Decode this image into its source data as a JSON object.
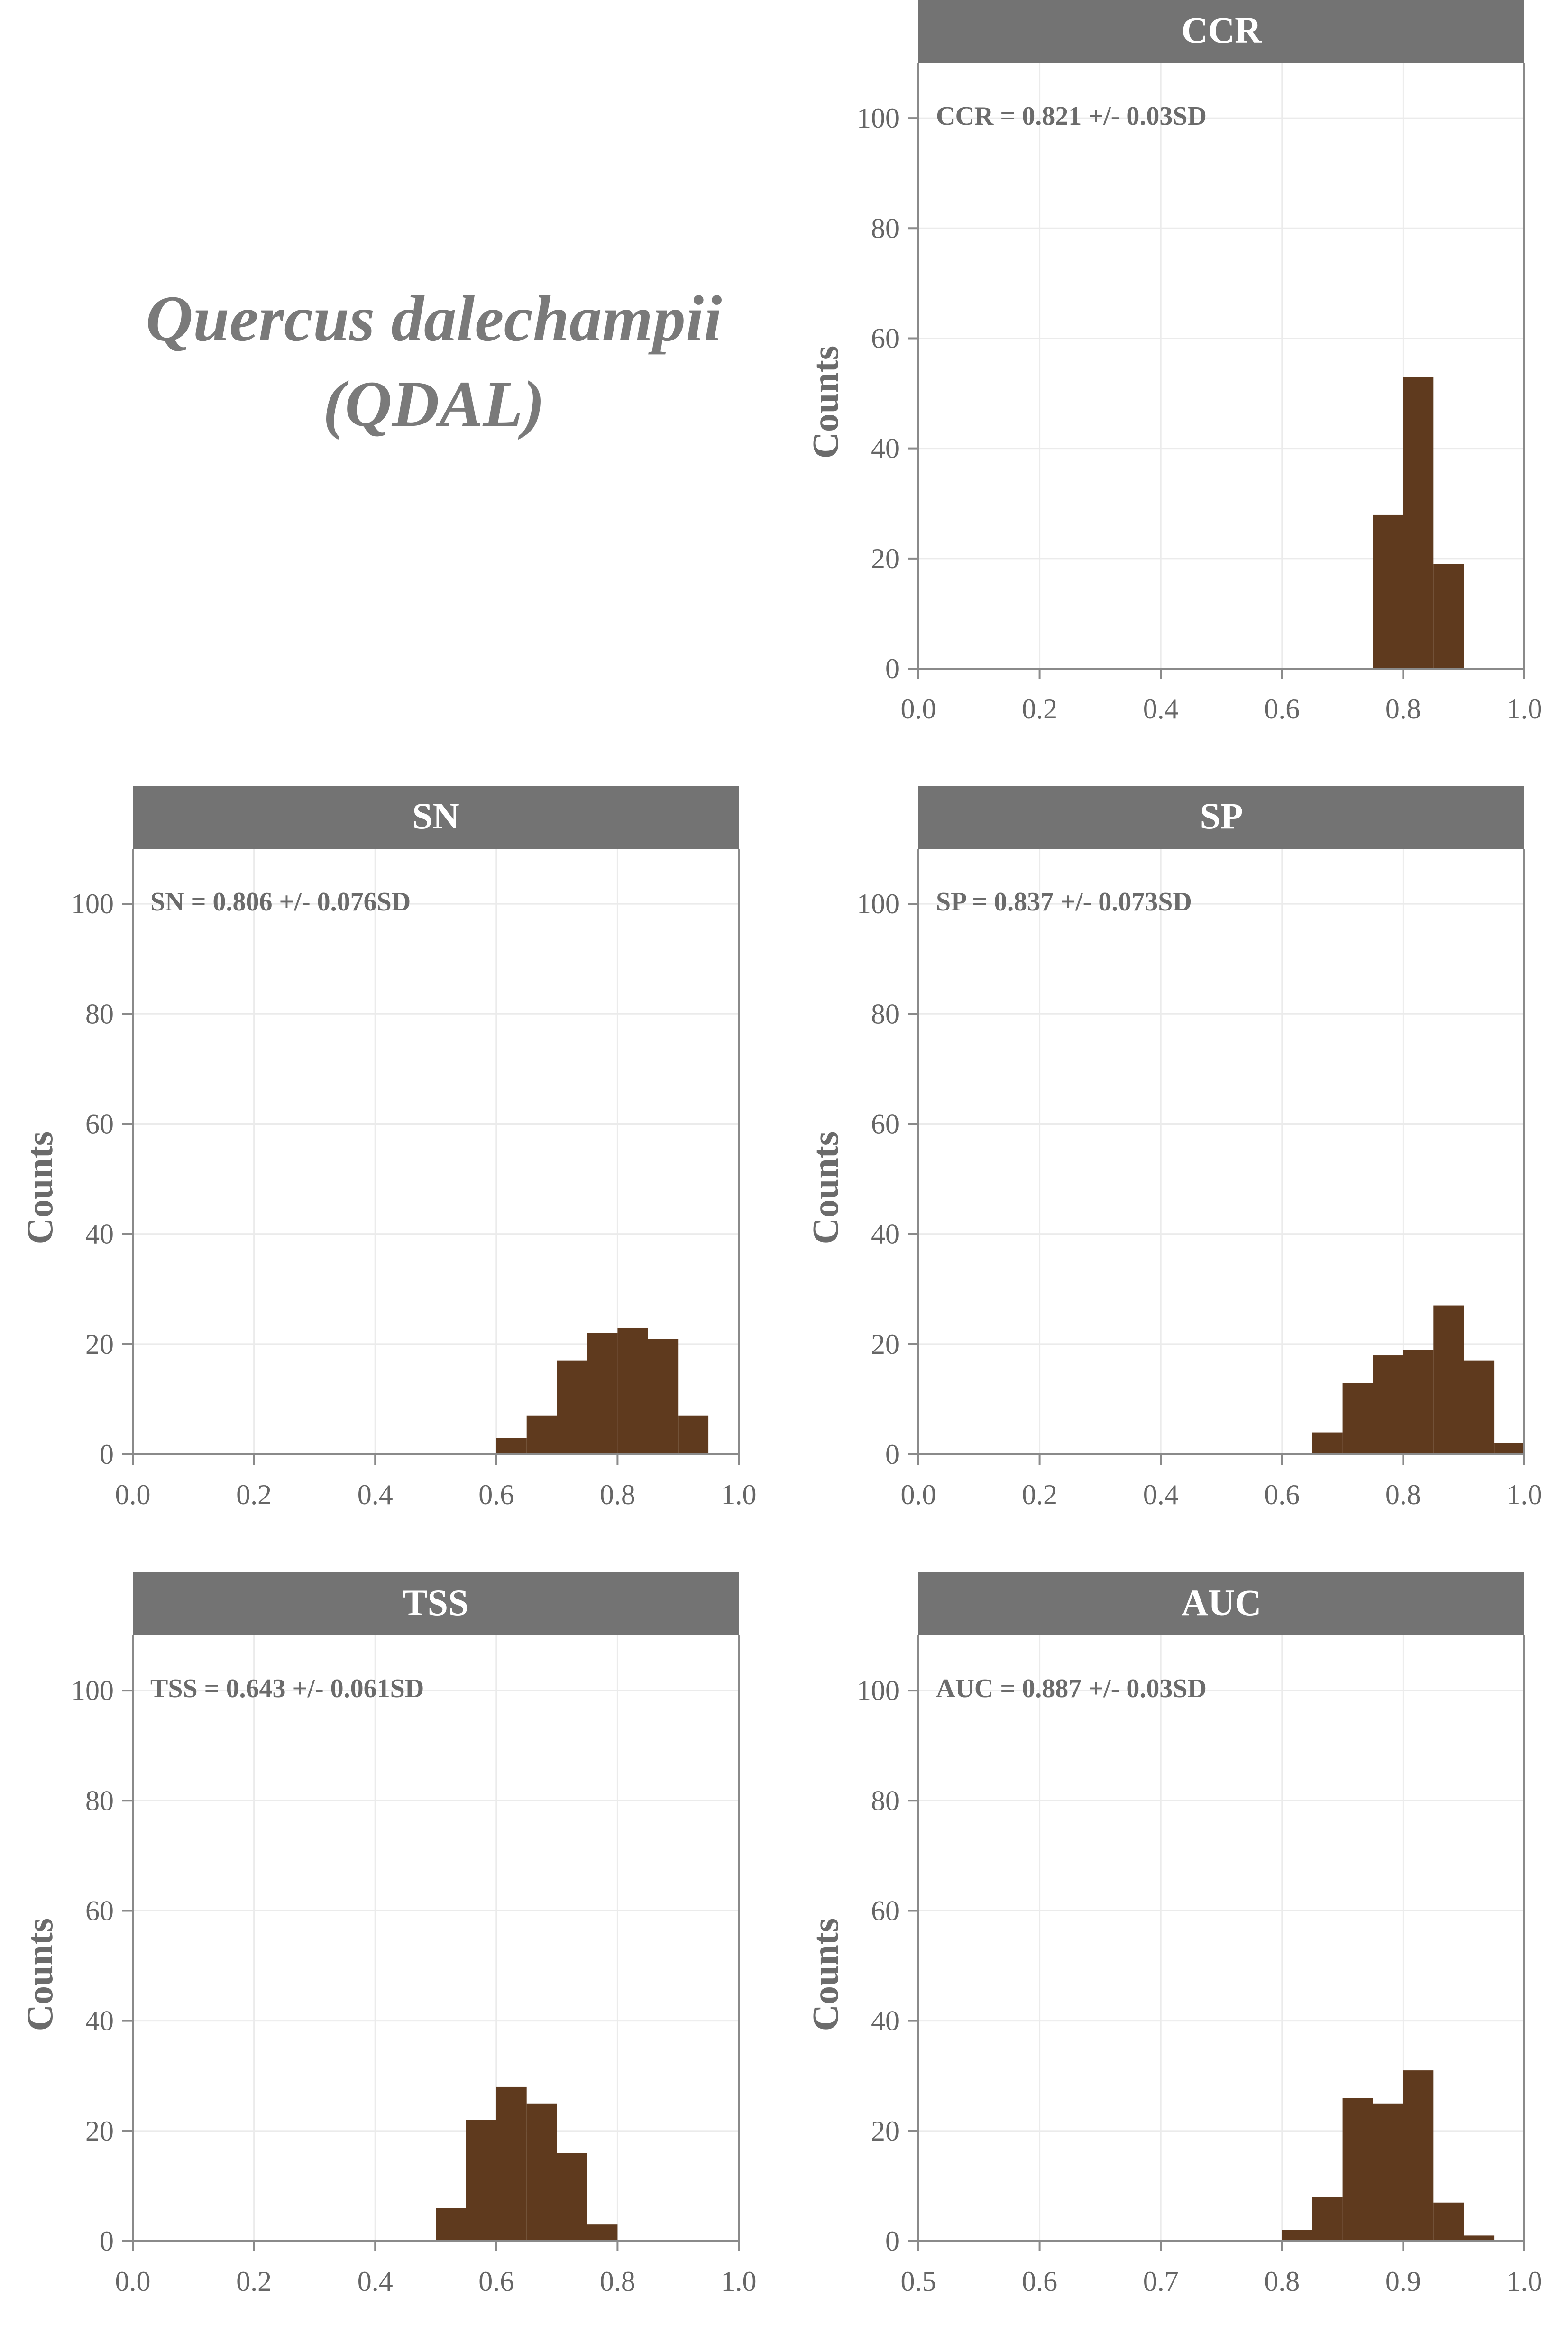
{
  "figure_title": {
    "line1": "Quercus dalechampii",
    "line2": "(QDAL)"
  },
  "colors": {
    "bar": "#5f3a1e",
    "strip": "#737373",
    "grid": "#ebebeb",
    "axis": "#8a8a8a",
    "text": "#666666"
  },
  "chart_data": [
    {
      "type": "bar",
      "facet": "CCR",
      "annotation": "CCR = 0.821 +/- 0.03SD",
      "ylabel": "Counts",
      "xlim": [
        0.0,
        1.0
      ],
      "ylim": [
        0,
        110
      ],
      "xticks": [
        "0.0",
        "0.2",
        "0.4",
        "0.6",
        "0.8",
        "1.0"
      ],
      "yticks": [
        "0",
        "20",
        "40",
        "60",
        "80",
        "100"
      ],
      "bin_width": 0.05,
      "bins": [
        {
          "x0": 0.75,
          "count": 28
        },
        {
          "x0": 0.8,
          "count": 53
        },
        {
          "x0": 0.85,
          "count": 19
        }
      ]
    },
    {
      "type": "bar",
      "facet": "SN",
      "annotation": "SN = 0.806 +/- 0.076SD",
      "ylabel": "Counts",
      "xlim": [
        0.0,
        1.0
      ],
      "ylim": [
        0,
        110
      ],
      "xticks": [
        "0.0",
        "0.2",
        "0.4",
        "0.6",
        "0.8",
        "1.0"
      ],
      "yticks": [
        "0",
        "20",
        "40",
        "60",
        "80",
        "100"
      ],
      "bin_width": 0.05,
      "bins": [
        {
          "x0": 0.6,
          "count": 3
        },
        {
          "x0": 0.65,
          "count": 7
        },
        {
          "x0": 0.7,
          "count": 17
        },
        {
          "x0": 0.75,
          "count": 22
        },
        {
          "x0": 0.8,
          "count": 23
        },
        {
          "x0": 0.85,
          "count": 21
        },
        {
          "x0": 0.9,
          "count": 7
        }
      ]
    },
    {
      "type": "bar",
      "facet": "SP",
      "annotation": "SP = 0.837 +/- 0.073SD",
      "ylabel": "Counts",
      "xlim": [
        0.0,
        1.0
      ],
      "ylim": [
        0,
        110
      ],
      "xticks": [
        "0.0",
        "0.2",
        "0.4",
        "0.6",
        "0.8",
        "1.0"
      ],
      "yticks": [
        "0",
        "20",
        "40",
        "60",
        "80",
        "100"
      ],
      "bin_width": 0.05,
      "bins": [
        {
          "x0": 0.65,
          "count": 4
        },
        {
          "x0": 0.7,
          "count": 13
        },
        {
          "x0": 0.75,
          "count": 18
        },
        {
          "x0": 0.8,
          "count": 19
        },
        {
          "x0": 0.85,
          "count": 27
        },
        {
          "x0": 0.9,
          "count": 17
        },
        {
          "x0": 0.95,
          "count": 2
        }
      ]
    },
    {
      "type": "bar",
      "facet": "TSS",
      "annotation": "TSS = 0.643 +/- 0.061SD",
      "ylabel": "Counts",
      "xlim": [
        0.0,
        1.0
      ],
      "ylim": [
        0,
        110
      ],
      "xticks": [
        "0.0",
        "0.2",
        "0.4",
        "0.6",
        "0.8",
        "1.0"
      ],
      "yticks": [
        "0",
        "20",
        "40",
        "60",
        "80",
        "100"
      ],
      "bin_width": 0.05,
      "bins": [
        {
          "x0": 0.5,
          "count": 6
        },
        {
          "x0": 0.55,
          "count": 22
        },
        {
          "x0": 0.6,
          "count": 28
        },
        {
          "x0": 0.65,
          "count": 25
        },
        {
          "x0": 0.7,
          "count": 16
        },
        {
          "x0": 0.75,
          "count": 3
        }
      ]
    },
    {
      "type": "bar",
      "facet": "AUC",
      "annotation": "AUC = 0.887 +/- 0.03SD",
      "ylabel": "Counts",
      "xlim": [
        0.5,
        1.0
      ],
      "ylim": [
        0,
        110
      ],
      "xticks": [
        "0.5",
        "0.6",
        "0.7",
        "0.8",
        "0.9",
        "1.0"
      ],
      "yticks": [
        "0",
        "20",
        "40",
        "60",
        "80",
        "100"
      ],
      "bin_width": 0.025,
      "bins": [
        {
          "x0": 0.8,
          "count": 2
        },
        {
          "x0": 0.825,
          "count": 8
        },
        {
          "x0": 0.85,
          "count": 26
        },
        {
          "x0": 0.875,
          "count": 25
        },
        {
          "x0": 0.9,
          "count": 31
        },
        {
          "x0": 0.925,
          "count": 7
        },
        {
          "x0": 0.95,
          "count": 1
        }
      ]
    }
  ]
}
